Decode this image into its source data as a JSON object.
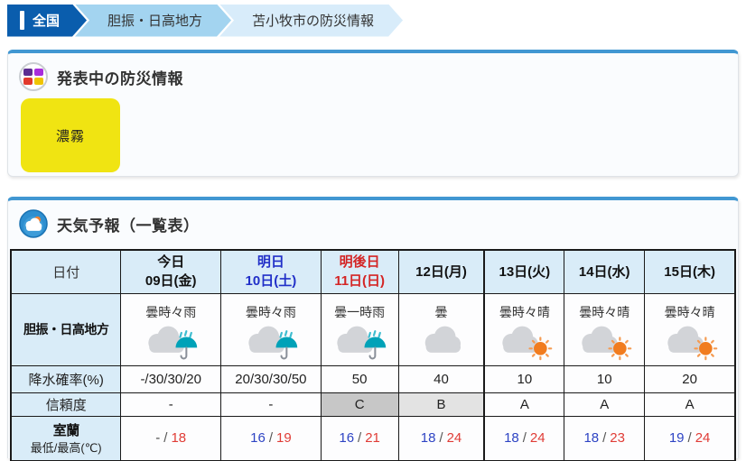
{
  "breadcrumb": {
    "items": [
      {
        "label": "全国"
      },
      {
        "label": "胆振・日高地方"
      },
      {
        "label": "苫小牧市の防災情報"
      }
    ]
  },
  "alerts_panel": {
    "title": "発表中の防災情報",
    "badges": [
      {
        "label": "濃霧"
      }
    ]
  },
  "forecast_panel": {
    "title": "天気予報（一覧表）",
    "table": {
      "date_header": "日付",
      "days": [
        {
          "name": "今日",
          "date": "09日(金)",
          "color": "black"
        },
        {
          "name": "明日",
          "date": "10日(土)",
          "color": "blue"
        },
        {
          "name": "明後日",
          "date": "11日(日)",
          "color": "red"
        },
        {
          "name": "",
          "date": "12日(月)",
          "color": "black"
        },
        {
          "name": "",
          "date": "13日(火)",
          "color": "black"
        },
        {
          "name": "",
          "date": "14日(水)",
          "color": "black"
        },
        {
          "name": "",
          "date": "15日(木)",
          "color": "black"
        }
      ],
      "region_row": {
        "label": "胆振・日高地方",
        "cells": [
          {
            "weather": "曇時々雨",
            "icon": "cloud-umbrella"
          },
          {
            "weather": "曇時々雨",
            "icon": "cloud-umbrella"
          },
          {
            "weather": "曇一時雨",
            "icon": "cloud-umbrella"
          },
          {
            "weather": "曇",
            "icon": "cloud"
          },
          {
            "weather": "曇時々晴",
            "icon": "cloud-sun"
          },
          {
            "weather": "曇時々晴",
            "icon": "cloud-sun"
          },
          {
            "weather": "曇時々晴",
            "icon": "cloud-sun"
          }
        ]
      },
      "precip_row": {
        "label": "降水確率(%)",
        "values": [
          "-/30/30/20",
          "20/30/30/50",
          "50",
          "40",
          "10",
          "10",
          "20"
        ]
      },
      "reliability_row": {
        "label": "信頼度",
        "values": [
          {
            "grade": "-"
          },
          {
            "grade": "-"
          },
          {
            "grade": "C"
          },
          {
            "grade": "B"
          },
          {
            "grade": "A"
          },
          {
            "grade": "A"
          },
          {
            "grade": "A"
          }
        ]
      },
      "temp_row": {
        "city": "室蘭",
        "label": "最低/最高(℃)",
        "separator": "/",
        "values": [
          {
            "min": "-",
            "max": "18"
          },
          {
            "min": "16",
            "max": "19"
          },
          {
            "min": "16",
            "max": "21"
          },
          {
            "min": "18",
            "max": "24"
          },
          {
            "min": "18",
            "max": "24"
          },
          {
            "min": "18",
            "max": "23"
          },
          {
            "min": "19",
            "max": "24"
          }
        ]
      }
    }
  },
  "colors": {
    "breadcrumb_active_bg": "#0a5dad",
    "breadcrumb_mid_bg": "#a3d4f0",
    "breadcrumb_light_bg": "#d8ecfa",
    "panel_top_bar": "#4197d2",
    "table_header_bg": "#d9ecf8",
    "alert_badge_yellow": "#f0e412",
    "saturday_blue": "#2230c8",
    "sunday_red": "#d42525",
    "temp_min_blue": "#2e44c4",
    "temp_max_red": "#e03c36",
    "reliability_c_bg": "#c7c7c7",
    "reliability_b_bg": "#e3e3e3",
    "rain_teal": "#00a2b8",
    "sun_orange": "#f17c1f"
  }
}
